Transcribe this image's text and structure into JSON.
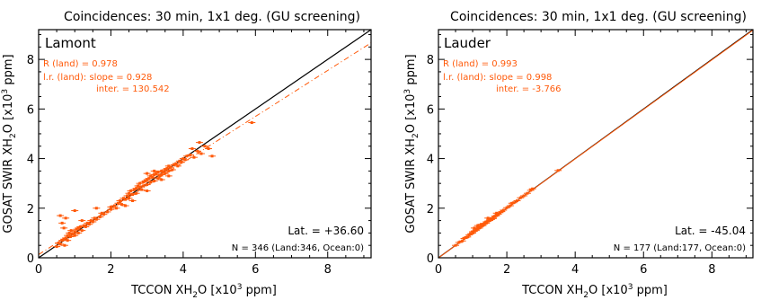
{
  "chart_data": [
    {
      "type": "scatter",
      "title": "Coincidences: 30 min, 1x1 deg. (GU screening)",
      "site": "Lamont",
      "xlabel": "TCCON XH",
      "xlabel_sub": "2",
      "xlabel_rest": "O [x10",
      "xlabel_sup": "3",
      "xlabel_end": " ppm]",
      "ylabel": "GOSAT SWIR XH",
      "ylabel_sub": "2",
      "ylabel_rest": "O [x10",
      "ylabel_sup": "3",
      "ylabel_end": " ppm]",
      "xlim": [
        0,
        9.2
      ],
      "ylim": [
        0,
        9.2
      ],
      "xticks": [
        "0",
        "2",
        "4",
        "6",
        "8"
      ],
      "yticks": [
        "0",
        "2",
        "4",
        "6",
        "8"
      ],
      "stats": {
        "r": "R (land) = 0.978",
        "slope": "l.r. (land): slope = 0.928",
        "inter": "inter. = 130.542",
        "lat": "Lat. = +36.60",
        "n": "N = 346 (Land:346, Ocean:0)"
      },
      "fit": {
        "slope": 0.928,
        "intercept_ppm": 130.542
      },
      "points": [
        [
          0.5,
          0.45
        ],
        [
          0.55,
          0.6
        ],
        [
          0.6,
          0.55
        ],
        [
          0.65,
          0.7
        ],
        [
          0.7,
          0.75
        ],
        [
          0.72,
          0.5
        ],
        [
          0.75,
          0.8
        ],
        [
          0.8,
          0.9
        ],
        [
          0.8,
          0.7
        ],
        [
          0.85,
          1.0
        ],
        [
          0.88,
          0.85
        ],
        [
          0.9,
          1.1
        ],
        [
          0.95,
          0.95
        ],
        [
          1.0,
          1.05
        ],
        [
          1.0,
          0.9
        ],
        [
          1.05,
          1.15
        ],
        [
          1.1,
          1.2
        ],
        [
          1.1,
          1.0
        ],
        [
          1.15,
          1.25
        ],
        [
          1.2,
          1.1
        ],
        [
          1.25,
          1.3
        ],
        [
          1.3,
          1.25
        ],
        [
          1.35,
          1.4
        ],
        [
          1.4,
          1.35
        ],
        [
          1.45,
          1.5
        ],
        [
          1.5,
          1.45
        ],
        [
          1.55,
          1.6
        ],
        [
          1.6,
          1.55
        ],
        [
          1.7,
          1.65
        ],
        [
          1.75,
          1.8
        ],
        [
          0.6,
          1.7
        ],
        [
          0.65,
          1.4
        ],
        [
          0.7,
          1.2
        ],
        [
          0.75,
          1.6
        ],
        [
          1.0,
          1.9
        ],
        [
          1.2,
          1.5
        ],
        [
          1.6,
          2.0
        ],
        [
          1.8,
          1.75
        ],
        [
          1.9,
          1.85
        ],
        [
          2.0,
          1.95
        ],
        [
          2.0,
          2.05
        ],
        [
          2.1,
          2.1
        ],
        [
          2.15,
          2.0
        ],
        [
          2.2,
          2.2
        ],
        [
          2.25,
          2.3
        ],
        [
          2.3,
          2.15
        ],
        [
          2.35,
          2.4
        ],
        [
          2.4,
          2.35
        ],
        [
          2.45,
          2.5
        ],
        [
          2.5,
          2.4
        ],
        [
          2.5,
          2.6
        ],
        [
          2.55,
          2.7
        ],
        [
          2.6,
          2.55
        ],
        [
          2.65,
          2.75
        ],
        [
          2.7,
          2.8
        ],
        [
          2.7,
          2.6
        ],
        [
          2.75,
          2.9
        ],
        [
          2.8,
          2.85
        ],
        [
          2.8,
          3.0
        ],
        [
          2.85,
          2.75
        ],
        [
          2.9,
          3.05
        ],
        [
          2.9,
          2.9
        ],
        [
          2.95,
          3.1
        ],
        [
          3.0,
          2.95
        ],
        [
          3.0,
          3.15
        ],
        [
          3.05,
          3.2
        ],
        [
          3.1,
          3.05
        ],
        [
          3.1,
          3.3
        ],
        [
          3.15,
          3.25
        ],
        [
          3.2,
          3.1
        ],
        [
          3.2,
          3.35
        ],
        [
          3.25,
          3.4
        ],
        [
          3.3,
          3.2
        ],
        [
          3.3,
          3.45
        ],
        [
          3.35,
          3.3
        ],
        [
          3.4,
          3.5
        ],
        [
          3.4,
          3.35
        ],
        [
          3.45,
          3.45
        ],
        [
          3.5,
          3.4
        ],
        [
          3.5,
          3.55
        ],
        [
          3.55,
          3.6
        ],
        [
          3.6,
          3.5
        ],
        [
          3.6,
          3.7
        ],
        [
          3.65,
          3.65
        ],
        [
          3.7,
          3.55
        ],
        [
          3.75,
          3.75
        ],
        [
          3.8,
          3.8
        ],
        [
          3.85,
          3.7
        ],
        [
          3.9,
          3.9
        ],
        [
          3.95,
          3.85
        ],
        [
          4.0,
          4.0
        ],
        [
          4.05,
          3.95
        ],
        [
          4.1,
          4.1
        ],
        [
          4.2,
          4.15
        ],
        [
          4.3,
          4.05
        ],
        [
          4.4,
          4.3
        ],
        [
          4.5,
          4.2
        ],
        [
          4.6,
          4.5
        ],
        [
          4.7,
          4.4
        ],
        [
          4.8,
          4.1
        ],
        [
          3.0,
          3.4
        ],
        [
          3.2,
          3.5
        ],
        [
          3.4,
          3.15
        ],
        [
          2.6,
          2.3
        ],
        [
          2.4,
          2.1
        ],
        [
          3.6,
          3.3
        ],
        [
          4.25,
          4.4
        ],
        [
          4.45,
          4.65
        ],
        [
          5.9,
          5.45
        ],
        [
          3.0,
          2.7
        ]
      ]
    },
    {
      "type": "scatter",
      "title": "Coincidences: 30 min, 1x1 deg. (GU screening)",
      "site": "Lauder",
      "xlabel": "TCCON XH",
      "xlabel_sub": "2",
      "xlabel_rest": "O [x10",
      "xlabel_sup": "3",
      "xlabel_end": " ppm]",
      "ylabel": "GOSAT SWIR XH",
      "ylabel_sub": "2",
      "ylabel_rest": "O [x10",
      "ylabel_sup": "3",
      "ylabel_end": " ppm]",
      "xlim": [
        0,
        9.2
      ],
      "ylim": [
        0,
        9.2
      ],
      "xticks": [
        "0",
        "2",
        "4",
        "6",
        "8"
      ],
      "yticks": [
        "0",
        "2",
        "4",
        "6",
        "8"
      ],
      "stats": {
        "r": "R (land) = 0.993",
        "slope": "l.r. (land): slope = 0.998",
        "inter": "inter. = -3.766",
        "lat": "Lat. = -45.04",
        "n": "N = 177 (Land:177, Ocean:0)"
      },
      "fit": {
        "slope": 0.998,
        "intercept_ppm": -3.766
      },
      "points": [
        [
          0.5,
          0.5
        ],
        [
          0.6,
          0.62
        ],
        [
          0.7,
          0.68
        ],
        [
          0.75,
          0.78
        ],
        [
          0.8,
          0.82
        ],
        [
          0.85,
          0.84
        ],
        [
          0.9,
          0.92
        ],
        [
          0.95,
          0.97
        ],
        [
          1.0,
          1.0
        ],
        [
          1.0,
          1.05
        ],
        [
          1.05,
          1.08
        ],
        [
          1.1,
          1.1
        ],
        [
          1.1,
          1.15
        ],
        [
          1.15,
          1.18
        ],
        [
          1.2,
          1.2
        ],
        [
          1.2,
          1.25
        ],
        [
          1.25,
          1.28
        ],
        [
          1.3,
          1.3
        ],
        [
          1.3,
          1.35
        ],
        [
          1.35,
          1.38
        ],
        [
          1.4,
          1.4
        ],
        [
          1.4,
          1.45
        ],
        [
          1.45,
          1.48
        ],
        [
          1.5,
          1.5
        ],
        [
          1.5,
          1.55
        ],
        [
          1.55,
          1.55
        ],
        [
          1.6,
          1.62
        ],
        [
          1.6,
          1.58
        ],
        [
          1.65,
          1.68
        ],
        [
          1.7,
          1.7
        ],
        [
          1.75,
          1.76
        ],
        [
          1.8,
          1.82
        ],
        [
          1.85,
          1.86
        ],
        [
          1.9,
          1.92
        ],
        [
          2.0,
          2.02
        ],
        [
          2.1,
          2.1
        ],
        [
          2.2,
          2.22
        ],
        [
          2.3,
          2.3
        ],
        [
          2.4,
          2.42
        ],
        [
          2.5,
          2.5
        ],
        [
          2.6,
          2.6
        ],
        [
          2.7,
          2.72
        ],
        [
          2.75,
          2.78
        ],
        [
          3.5,
          3.52
        ],
        [
          1.25,
          1.35
        ],
        [
          1.45,
          1.6
        ],
        [
          1.7,
          1.8
        ],
        [
          2.15,
          2.2
        ],
        [
          1.15,
          1.3
        ],
        [
          1.05,
          1.2
        ]
      ]
    }
  ]
}
